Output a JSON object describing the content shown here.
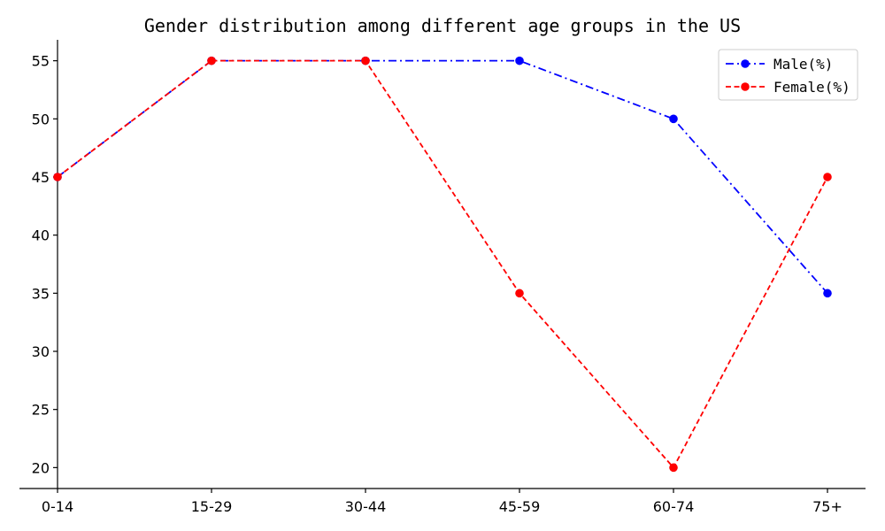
{
  "chart_data": {
    "type": "line",
    "title": "Gender distribution among different age groups in the US",
    "xlabel": "",
    "ylabel": "",
    "categories": [
      "0-14",
      "15-29",
      "30-44",
      "45-59",
      "60-74",
      "75+"
    ],
    "yticks": [
      20,
      25,
      30,
      35,
      40,
      45,
      50,
      55
    ],
    "ylim": [
      18.2,
      56.8
    ],
    "grid": false,
    "legend_position": "top-right",
    "series": [
      {
        "name": "Male(%)",
        "values": [
          45,
          55,
          55,
          55,
          50,
          35
        ],
        "color": "#0000ff",
        "linestyle": "dash-dot",
        "marker": "circle"
      },
      {
        "name": "Female(%)",
        "values": [
          45,
          55,
          55,
          35,
          20,
          45
        ],
        "color": "#ff0000",
        "linestyle": "dashed",
        "marker": "circle"
      }
    ]
  }
}
